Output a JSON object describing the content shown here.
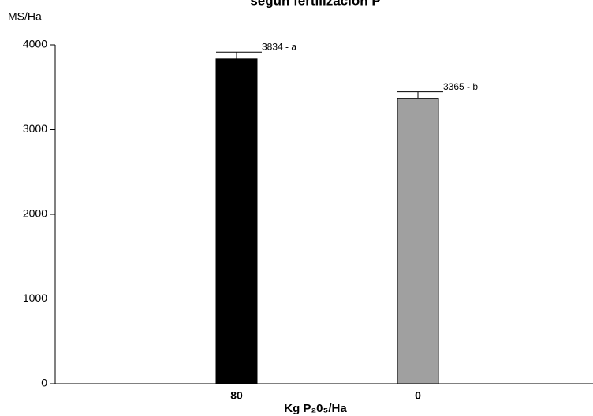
{
  "chart_data": {
    "type": "bar",
    "title": "según fertilización P",
    "y_label": "MS/Ha",
    "x_label": "Kg P₂0₅/Ha",
    "categories": [
      "80",
      "0"
    ],
    "values": [
      3834,
      3365
    ],
    "errors": [
      80,
      80
    ],
    "value_labels": [
      "3834 - a",
      "3365 - b"
    ],
    "colors": [
      "#000000",
      "#a0a0a0"
    ],
    "ylim": [
      0,
      4000
    ],
    "yticks": [
      0,
      1000,
      2000,
      3000,
      4000
    ]
  }
}
